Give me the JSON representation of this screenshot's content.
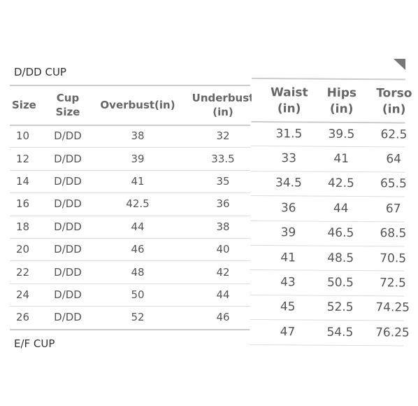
{
  "left": {
    "title": "D/DD CUP",
    "headers": [
      "Size",
      "Cup Size",
      "Overbust(in)",
      "Underbust (in)"
    ],
    "rows": [
      [
        "10",
        "D/DD",
        "38",
        "32"
      ],
      [
        "12",
        "D/DD",
        "39",
        "33.5"
      ],
      [
        "14",
        "D/DD",
        "41",
        "35"
      ],
      [
        "16",
        "D/DD",
        "42.5",
        "36"
      ],
      [
        "18",
        "D/DD",
        "44",
        "38"
      ],
      [
        "20",
        "D/DD",
        "46",
        "40"
      ],
      [
        "22",
        "D/DD",
        "48",
        "42"
      ],
      [
        "24",
        "D/DD",
        "50",
        "44"
      ],
      [
        "26",
        "D/DD",
        "52",
        "46"
      ]
    ],
    "next_title": "E/F CUP"
  },
  "right": {
    "headers": [
      "Waist (in)",
      "Hips (in)",
      "Torso (in)"
    ],
    "rows": [
      [
        "31.5",
        "39.5",
        "62.5"
      ],
      [
        "33",
        "41",
        "64"
      ],
      [
        "34.5",
        "42.5",
        "65.5"
      ],
      [
        "36",
        "44",
        "67"
      ],
      [
        "39",
        "46.5",
        "68.5"
      ],
      [
        "41",
        "48.5",
        "70.5"
      ],
      [
        "43",
        "50.5",
        "72.5"
      ],
      [
        "45",
        "52.5",
        "74.25"
      ],
      [
        "47",
        "54.5",
        "76.25"
      ]
    ]
  }
}
